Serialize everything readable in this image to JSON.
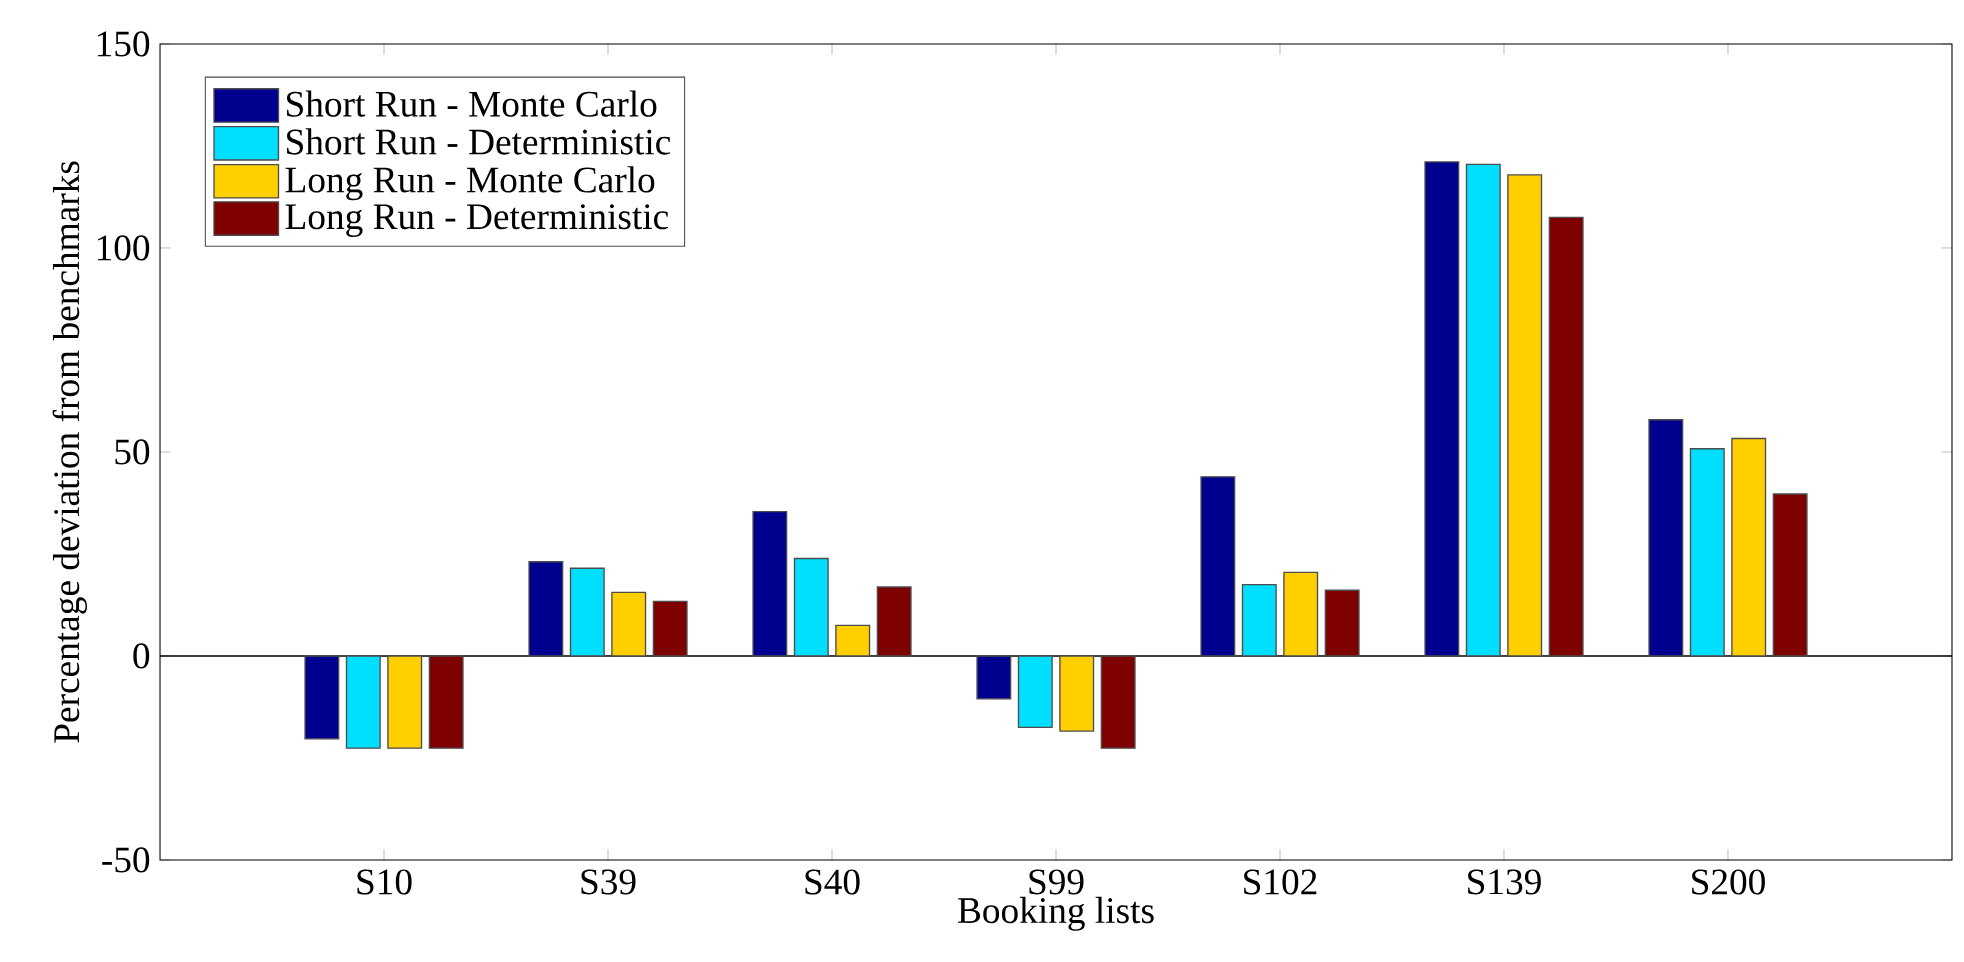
{
  "chart_data": {
    "type": "bar",
    "xlabel": "Booking lists",
    "ylabel": "Percentage deviation from benchmarks",
    "categories": [
      "S10",
      "S39",
      "S40",
      "S99",
      "S102",
      "S139",
      "S200"
    ],
    "series": [
      {
        "name": "Short Run - Monte Carlo",
        "color": "#00008f",
        "values": [
          -20.3,
          23.1,
          35.4,
          -10.5,
          43.9,
          121.1,
          57.9
        ]
      },
      {
        "name": "Short Run - Deterministic",
        "color": "#00dfff",
        "values": [
          -22.6,
          21.5,
          23.9,
          -17.5,
          17.5,
          120.5,
          50.8
        ]
      },
      {
        "name": "Long Run - Monte Carlo",
        "color": "#ffcf00",
        "values": [
          -22.6,
          15.6,
          7.5,
          -18.4,
          20.5,
          117.9,
          53.3
        ]
      },
      {
        "name": "Long Run - Deterministic",
        "color": "#7f0000",
        "values": [
          -22.6,
          13.4,
          16.9,
          -22.6,
          16.1,
          107.5,
          39.7
        ]
      }
    ],
    "ylim": [
      -50,
      150
    ],
    "yticks": [
      -50,
      0,
      50,
      100,
      150
    ],
    "legend": "top left"
  }
}
